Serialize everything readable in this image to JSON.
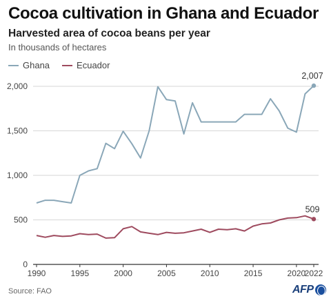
{
  "header": {
    "title": "Cocoa cultivation in Ghana and Ecuador",
    "subtitle": "Harvested area of cocoa beans per year",
    "unit": "In thousands of hectares"
  },
  "footer": {
    "source": "Source: FAO",
    "logo": "AFP"
  },
  "colors": {
    "ghana": "#8aa7b8",
    "ecuador": "#9e4a5e",
    "grid": "#d6d6d6",
    "axis": "#333333"
  },
  "chart_data": {
    "type": "line",
    "title": "Cocoa cultivation in Ghana and Ecuador",
    "subtitle": "Harvested area of cocoa beans per year",
    "xlabel": "",
    "ylabel": "",
    "xlim": [
      1990,
      2022
    ],
    "ylim": [
      0,
      2000
    ],
    "x_ticks": [
      1990,
      1995,
      2000,
      2005,
      2010,
      2015,
      2020,
      2022
    ],
    "x_tick_labels": [
      "1990",
      "1995",
      "2000",
      "2005",
      "2010",
      "2015",
      "2020",
      "2022"
    ],
    "y_ticks": [
      0,
      500,
      1000,
      1500,
      2000
    ],
    "y_tick_labels": [
      "0",
      "500",
      "1,000",
      "1,500",
      "2,000"
    ],
    "grid": "horizontal",
    "legend": "top-left",
    "x": [
      1990,
      1991,
      1992,
      1993,
      1994,
      1995,
      1996,
      1997,
      1998,
      1999,
      2000,
      2001,
      2002,
      2003,
      2004,
      2005,
      2006,
      2007,
      2008,
      2009,
      2010,
      2011,
      2012,
      2013,
      2014,
      2015,
      2016,
      2017,
      2018,
      2019,
      2020,
      2021,
      2022
    ],
    "series": [
      {
        "name": "Ghana",
        "values": [
          690,
          720,
          720,
          705,
          690,
          1000,
          1050,
          1075,
          1360,
          1300,
          1495,
          1355,
          1195,
          1500,
          1995,
          1850,
          1835,
          1465,
          1815,
          1600,
          1600,
          1600,
          1600,
          1600,
          1685,
          1685,
          1685,
          1860,
          1725,
          1530,
          1485,
          1915,
          2007
        ],
        "end_label": "2,007"
      },
      {
        "name": "Ecuador",
        "values": [
          325,
          305,
          325,
          315,
          320,
          345,
          335,
          340,
          295,
          300,
          400,
          425,
          365,
          350,
          335,
          360,
          350,
          355,
          375,
          395,
          360,
          395,
          390,
          400,
          375,
          430,
          455,
          465,
          500,
          520,
          525,
          545,
          509
        ],
        "end_label": "509"
      }
    ]
  }
}
